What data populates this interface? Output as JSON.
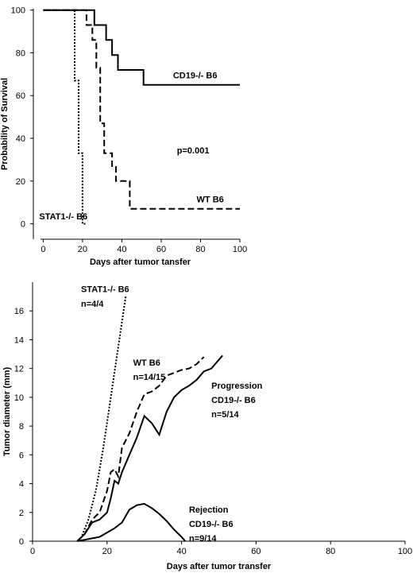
{
  "chart_data": [
    {
      "type": "line",
      "xlabel": "Days after tumor tansfer",
      "ylabel": "Probability of Survival",
      "xlim": [
        -5,
        102
      ],
      "ylim": [
        -5,
        101
      ],
      "xticks": [
        0,
        20,
        40,
        60,
        80,
        100
      ],
      "yticks": [
        0,
        20,
        40,
        60,
        80,
        100
      ],
      "grid": false,
      "legend": "none",
      "step": true,
      "series": [
        {
          "name": "CD19-/- B6",
          "style": "solid",
          "x": [
            0,
            13,
            13,
            17,
            17,
            21,
            21,
            26,
            26,
            32,
            32,
            35,
            35,
            38,
            38,
            44,
            44,
            51,
            51,
            100
          ],
          "y": [
            100,
            100,
            100,
            100,
            100,
            100,
            100,
            100,
            93,
            93,
            86,
            86,
            79,
            79,
            72,
            72,
            72,
            72,
            65,
            65
          ]
        },
        {
          "name": "WT B6",
          "style": "dashed",
          "x": [
            0,
            22,
            22,
            25,
            25,
            27,
            27,
            29,
            29,
            31,
            31,
            33,
            33,
            35,
            35,
            37,
            37,
            39,
            39,
            42,
            42,
            44,
            44,
            100
          ],
          "y": [
            100,
            100,
            93,
            93,
            86,
            86,
            73,
            73,
            47,
            47,
            33,
            33,
            33,
            33,
            27,
            27,
            20,
            20,
            20,
            20,
            20,
            20,
            7,
            7
          ]
        },
        {
          "name": "STAT1-/- B6",
          "style": "dotted",
          "x": [
            0,
            16,
            16,
            18,
            18,
            20,
            20,
            22,
            22
          ],
          "y": [
            100,
            100,
            67,
            67,
            33,
            33,
            0,
            0,
            0
          ]
        }
      ],
      "annotations": [
        {
          "text": "CD19-/- B6",
          "x": 66,
          "y": 68
        },
        {
          "text": "p=0.001",
          "x": 68,
          "y": 33
        },
        {
          "text": "WT B6",
          "x": 78,
          "y": 10
        },
        {
          "text": "STAT1-/- B6",
          "x": -2,
          "y": 2
        }
      ]
    },
    {
      "type": "line",
      "xlabel": "Days after tumor transfer",
      "ylabel": "Tumor diameter (mm)",
      "xlim": [
        0,
        100
      ],
      "ylim": [
        0,
        18
      ],
      "xticks": [
        0,
        20,
        40,
        60,
        80,
        100
      ],
      "yticks": [
        0,
        2,
        4,
        6,
        8,
        10,
        12,
        14,
        16
      ],
      "grid": false,
      "legend": "none",
      "series": [
        {
          "name": "STAT1-/- B6",
          "style": "dotted",
          "x": [
            13,
            15,
            17,
            19,
            21,
            23,
            25
          ],
          "y": [
            0.2,
            1.5,
            3.5,
            6.5,
            10.0,
            13.5,
            17.0
          ]
        },
        {
          "name": "WT B6",
          "style": "dashed",
          "x": [
            12,
            14,
            16,
            18,
            20,
            21,
            22,
            23,
            24,
            26,
            28,
            30,
            32,
            34,
            36,
            38,
            40,
            42,
            44,
            46
          ],
          "y": [
            0,
            0.5,
            1.5,
            2.0,
            3.5,
            4.8,
            5.0,
            4.5,
            6.5,
            7.5,
            9.0,
            10.2,
            10.4,
            10.8,
            11.5,
            11.7,
            11.9,
            12.0,
            12.3,
            12.8
          ]
        },
        {
          "name": "Progression CD19-/- B6",
          "style": "solid",
          "x": [
            12,
            14,
            16,
            18,
            20,
            21,
            22,
            23,
            24,
            26,
            28,
            30,
            32,
            34,
            36,
            38,
            40,
            42,
            44,
            46,
            48,
            51
          ],
          "y": [
            0,
            0.5,
            1.3,
            1.5,
            2.0,
            3.0,
            4.2,
            4.0,
            4.8,
            6.0,
            7.2,
            8.7,
            8.2,
            7.4,
            9.0,
            10.0,
            10.5,
            10.8,
            11.2,
            11.8,
            12.0,
            12.9
          ]
        },
        {
          "name": "Rejection CD19-/- B6",
          "style": "solid",
          "x": [
            12,
            14,
            16,
            18,
            20,
            22,
            24,
            26,
            28,
            30,
            32,
            34,
            36,
            38,
            40,
            41
          ],
          "y": [
            0,
            0.1,
            0.2,
            0.3,
            0.6,
            0.9,
            1.3,
            2.2,
            2.5,
            2.6,
            2.3,
            1.9,
            1.4,
            0.8,
            0.3,
            0
          ]
        }
      ],
      "annotations": [
        {
          "text": "STAT1-/- B6",
          "x": 13,
          "y": 17.3
        },
        {
          "text": "n=4/4",
          "x": 13,
          "y": 16.3
        },
        {
          "text": "WT B6",
          "x": 27,
          "y": 12.2
        },
        {
          "text": "n=14/15",
          "x": 27,
          "y": 11.2
        },
        {
          "text": "Progression",
          "x": 48,
          "y": 10.6
        },
        {
          "text": "CD19-/- B6",
          "x": 48,
          "y": 9.6
        },
        {
          "text": "n=5/14",
          "x": 48,
          "y": 8.6
        },
        {
          "text": "Rejection",
          "x": 42,
          "y": 2.0
        },
        {
          "text": "CD19-/- B6",
          "x": 42,
          "y": 1.0
        },
        {
          "text": "n=9/14",
          "x": 42,
          "y": 0.0
        }
      ]
    }
  ]
}
